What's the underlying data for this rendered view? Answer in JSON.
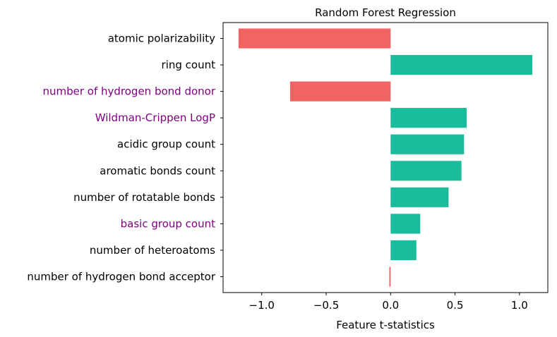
{
  "chart_data": {
    "type": "bar",
    "orientation": "horizontal",
    "title": "Random Forest Regression",
    "xlabel": "Feature t-statistics",
    "ylabel": "",
    "xlim": [
      -1.3,
      1.22
    ],
    "x_ticks": [
      -1.0,
      -0.5,
      0.0,
      0.5,
      1.0
    ],
    "x_tick_labels": [
      "−1.0",
      "−0.5",
      "0.0",
      "0.5",
      "1.0"
    ],
    "grid": false,
    "categories": [
      "atomic polarizability",
      "ring count",
      "number of hydrogen bond donor",
      "Wildman-Crippen LogP",
      "acidic group count",
      "aromatic bonds count",
      "number of rotatable bonds",
      "basic group count",
      "number of heteroatoms",
      "number of hydrogen bond acceptor"
    ],
    "values": [
      -1.18,
      1.1,
      -0.78,
      0.59,
      0.57,
      0.55,
      0.45,
      0.23,
      0.2,
      -0.01
    ],
    "label_colors": [
      "#000000",
      "#000000",
      "#800080",
      "#800080",
      "#000000",
      "#000000",
      "#000000",
      "#800080",
      "#000000",
      "#000000"
    ],
    "colors": {
      "positive": "#1abc9c",
      "negative": "#f26363"
    }
  }
}
